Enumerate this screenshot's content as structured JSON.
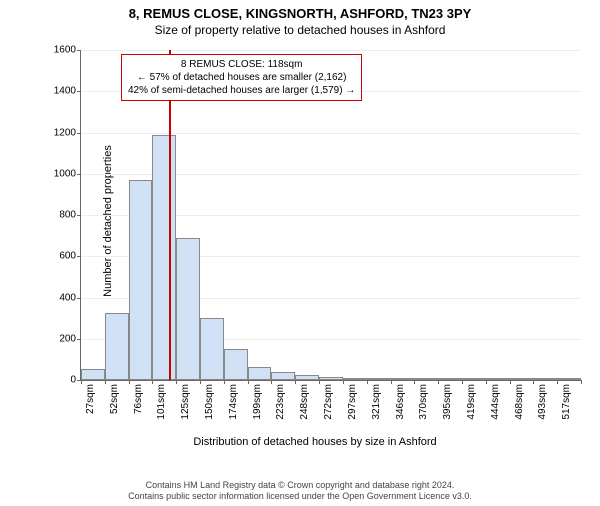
{
  "titles": {
    "main": "8, REMUS CLOSE, KINGSNORTH, ASHFORD, TN23 3PY",
    "sub": "Size of property relative to detached houses in Ashford"
  },
  "axes": {
    "ylabel": "Number of detached properties",
    "xlabel": "Distribution of detached houses by size in Ashford",
    "ylim_max": 1600,
    "ytick_step": 200,
    "yticks": [
      0,
      200,
      400,
      600,
      800,
      1000,
      1200,
      1400,
      1600
    ]
  },
  "chart": {
    "type": "histogram",
    "bar_fill": "#d0e0f5",
    "bar_stroke": "#888888",
    "background": "#ffffff",
    "grid_color": "#eeeeee",
    "start": 27,
    "bin_width": 24.5,
    "bins": [
      {
        "label": "27sqm",
        "value": 55
      },
      {
        "label": "52sqm",
        "value": 325
      },
      {
        "label": "76sqm",
        "value": 970
      },
      {
        "label": "101sqm",
        "value": 1190
      },
      {
        "label": "125sqm",
        "value": 690
      },
      {
        "label": "150sqm",
        "value": 300
      },
      {
        "label": "174sqm",
        "value": 150
      },
      {
        "label": "199sqm",
        "value": 65
      },
      {
        "label": "223sqm",
        "value": 40
      },
      {
        "label": "248sqm",
        "value": 22
      },
      {
        "label": "272sqm",
        "value": 14
      },
      {
        "label": "297sqm",
        "value": 10
      },
      {
        "label": "321sqm",
        "value": 7
      },
      {
        "label": "346sqm",
        "value": 5
      },
      {
        "label": "370sqm",
        "value": 12
      },
      {
        "label": "395sqm",
        "value": 4
      },
      {
        "label": "419sqm",
        "value": 3
      },
      {
        "label": "444sqm",
        "value": 2
      },
      {
        "label": "468sqm",
        "value": 2
      },
      {
        "label": "493sqm",
        "value": 2
      },
      {
        "label": "517sqm",
        "value": 2
      }
    ]
  },
  "marker": {
    "color": "#cc0000",
    "x_value": 118,
    "info": {
      "line1": "8 REMUS CLOSE: 118sqm",
      "line2": "← 57% of detached houses are smaller (2,162)",
      "line3": "42% of semi-detached houses are larger (1,579) →"
    }
  },
  "footer": {
    "line1": "Contains HM Land Registry data © Crown copyright and database right 2024.",
    "line2": "Contains public sector information licensed under the Open Government Licence v3.0."
  }
}
